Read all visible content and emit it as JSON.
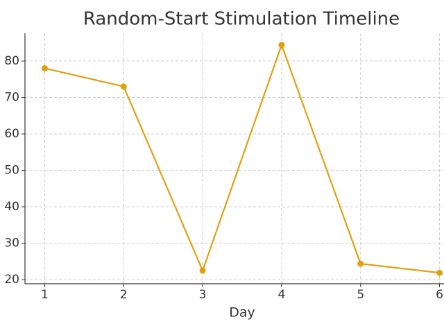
{
  "chart_data": {
    "type": "line",
    "title": "Random-Start Stimulation Timeline",
    "xlabel": "Day",
    "x": [
      1,
      2,
      3,
      4,
      5,
      6
    ],
    "series": [
      {
        "color": "#e0a010",
        "values": [
          78,
          73,
          22.5,
          84.4,
          24.4,
          21.9
        ]
      }
    ],
    "xlim": [
      0.75,
      6.25
    ],
    "ylim": [
      18.9,
      87.6
    ],
    "xticks": [
      1,
      2,
      3,
      4,
      5,
      6
    ],
    "yticks": [
      20,
      30,
      40,
      50,
      60,
      70,
      80
    ],
    "grid": true
  }
}
